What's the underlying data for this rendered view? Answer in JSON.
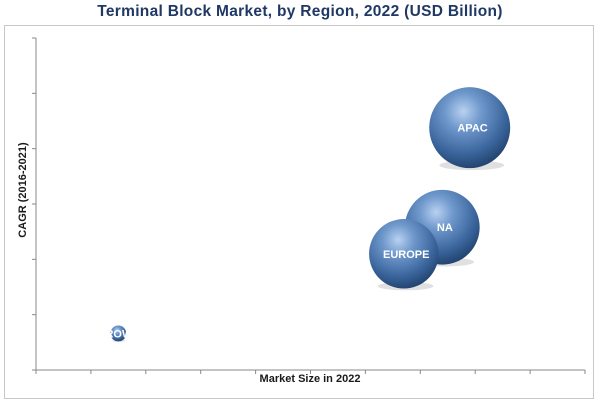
{
  "chart_data": {
    "type": "bubble",
    "title": "Terminal Block Market, by Region, 2022 (USD Billion)",
    "xlabel": "Market Size in 2022",
    "ylabel": "CAGR (2016-2021)",
    "grid": false,
    "legend": "none",
    "xlim": [
      0,
      100
    ],
    "ylim": [
      0,
      100
    ],
    "series": [
      {
        "label": "ROW",
        "x": 15,
        "y": 11,
        "size": 3.6
      },
      {
        "label": "EUROPE",
        "x": 67,
        "y": 35,
        "size": 15.8
      },
      {
        "label": "NA",
        "x": 74,
        "y": 43,
        "size": 17.0
      },
      {
        "label": "APAC",
        "x": 79,
        "y": 73,
        "size": 18.4
      }
    ],
    "colors": {
      "bubble_dark": "#1d3d66",
      "bubble_mid": "#3f6fa8",
      "bubble_light": "#a9c4e8",
      "title": "#1f3864"
    }
  }
}
